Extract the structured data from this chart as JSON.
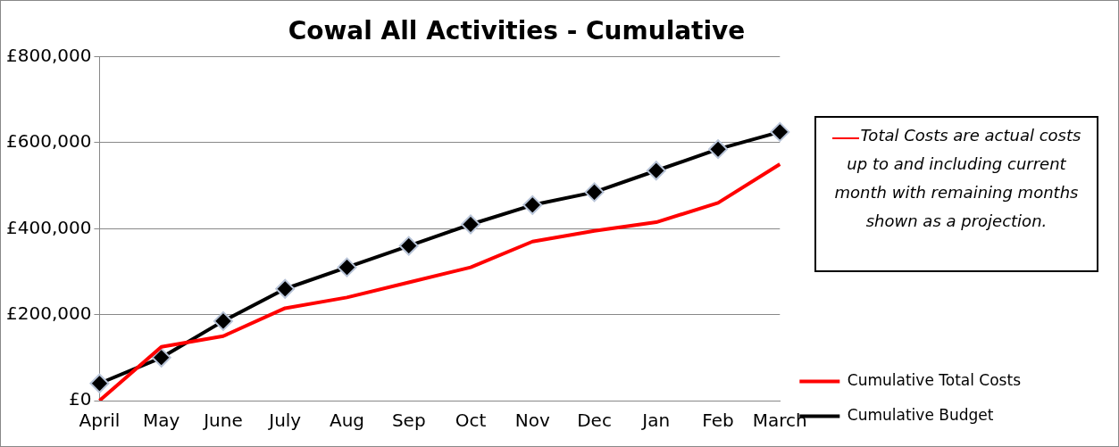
{
  "chart_data": {
    "type": "line",
    "title": "Cowal All Activities - Cumulative",
    "categories": [
      "April",
      "May",
      "June",
      "July",
      "Aug",
      "Sep",
      "Oct",
      "Nov",
      "Dec",
      "Jan",
      "Feb",
      "March"
    ],
    "series": [
      {
        "name": "Cumulative Total Costs",
        "color": "#ff0000",
        "marker": "none",
        "values": [
          0,
          125000,
          150000,
          215000,
          240000,
          275000,
          310000,
          370000,
          395000,
          415000,
          460000,
          550000
        ]
      },
      {
        "name": "Cumulative Budget",
        "color": "#000000",
        "marker": "diamond",
        "values": [
          40000,
          100000,
          185000,
          260000,
          310000,
          360000,
          410000,
          455000,
          485000,
          535000,
          585000,
          625000
        ]
      }
    ],
    "ylim": [
      0,
      800000
    ],
    "yticks": [
      {
        "value": 0,
        "label": "£0"
      },
      {
        "value": 200000,
        "label": "£200,000"
      },
      {
        "value": 400000,
        "label": "£400,000"
      },
      {
        "value": 600000,
        "label": "£600,000"
      },
      {
        "value": 800000,
        "label": "£800,000"
      }
    ],
    "grid": "y",
    "legend": "right",
    "annotations": [
      "Total Costs are actual costs up to and including current month with remaining months shown as a projection."
    ]
  }
}
